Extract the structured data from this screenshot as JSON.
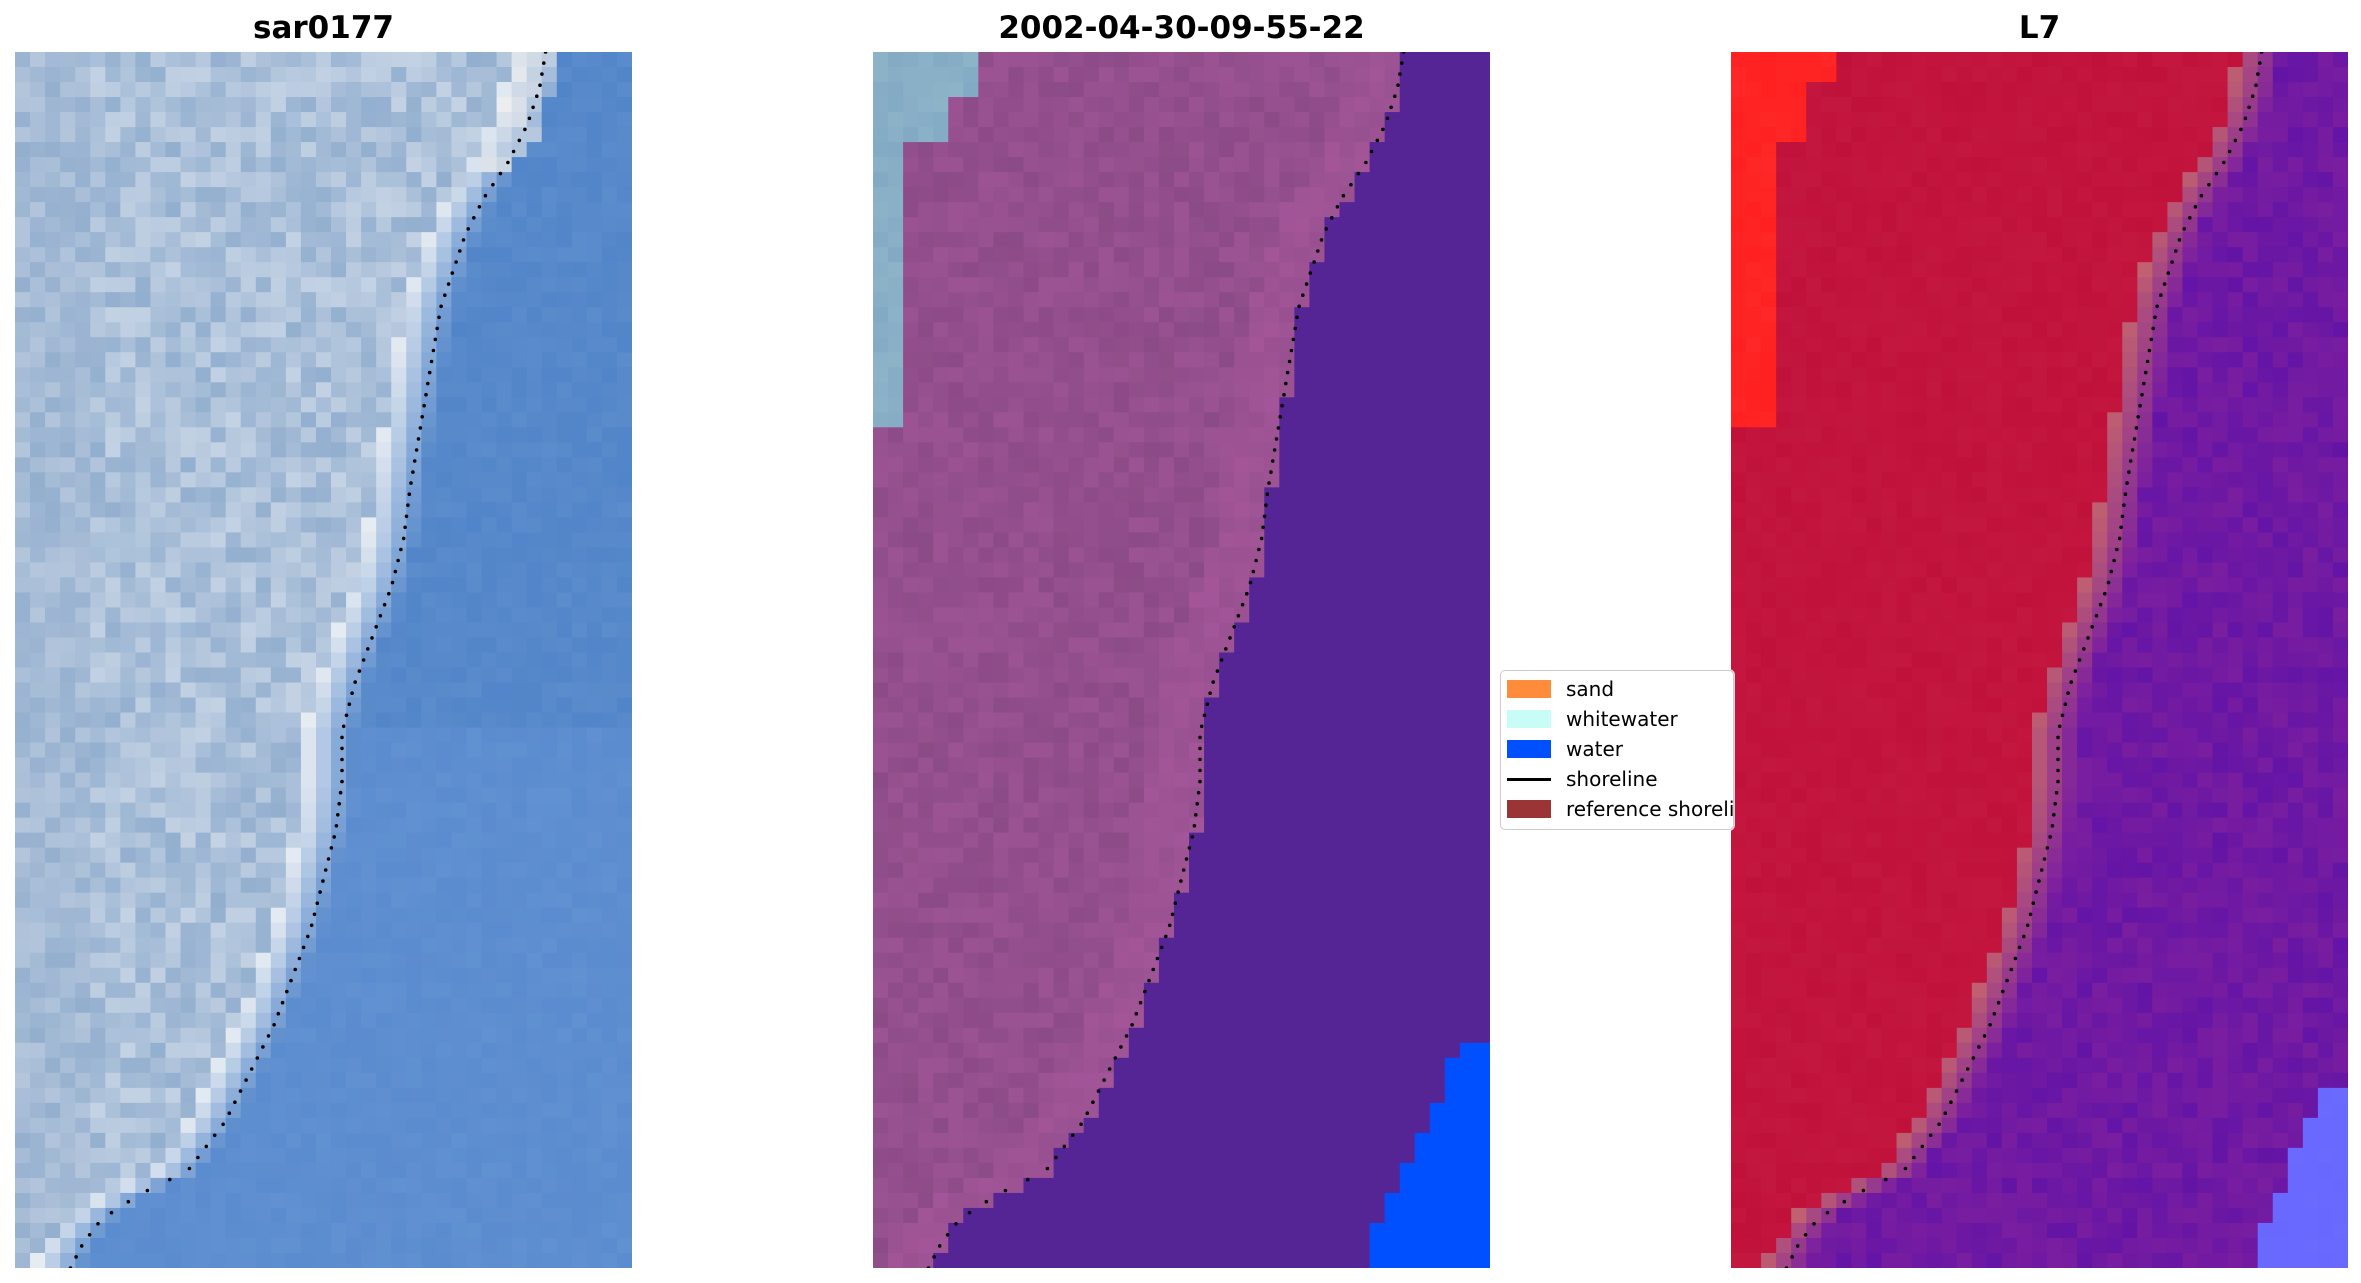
{
  "panels": [
    {
      "title": "sar0177",
      "kind": "true-color image",
      "colors": {
        "land_light": "#c9d6e6",
        "land_mid": "#93afcf",
        "whitewater": "#e6ecf2",
        "water": "#5b8ccc",
        "water_deep": "#4f83c8",
        "foam_bright": "#fff8ee"
      }
    },
    {
      "title": "2002-04-30-09-55-22",
      "kind": "classified image",
      "colors": {
        "land": "#8b4b87",
        "land_light": "#a4579a",
        "cloud_strip": "#8db3c9",
        "water": "#552596",
        "water_class": "#0050ff"
      }
    },
    {
      "title": "L7",
      "kind": "MNDWI image",
      "colors": {
        "land": "#c0113a",
        "land_bright": "#ff2020",
        "transition": "#c06070",
        "water": "#7a1ea0",
        "water_deep": "#5a10a8",
        "water_edge": "#6a6aff"
      }
    }
  ],
  "legend": {
    "items": [
      {
        "label": "sand",
        "color": "#ff8c3a",
        "kind": "patch"
      },
      {
        "label": "whitewater",
        "color": "#c8fcf6",
        "kind": "patch"
      },
      {
        "label": "water",
        "color": "#0050ff",
        "kind": "patch"
      },
      {
        "label": "shoreline",
        "color": "#000000",
        "kind": "line"
      },
      {
        "label": "reference shoreline",
        "color": "#9b3535",
        "kind": "patch"
      }
    ]
  },
  "shoreline": {
    "style": "dotted",
    "color": "#000000",
    "points": [
      [
        0.86,
        0.0
      ],
      [
        0.85,
        0.03
      ],
      [
        0.83,
        0.06
      ],
      [
        0.8,
        0.09
      ],
      [
        0.76,
        0.12
      ],
      [
        0.73,
        0.15
      ],
      [
        0.71,
        0.18
      ],
      [
        0.69,
        0.21
      ],
      [
        0.68,
        0.24
      ],
      [
        0.67,
        0.27
      ],
      [
        0.66,
        0.3
      ],
      [
        0.65,
        0.33
      ],
      [
        0.64,
        0.36
      ],
      [
        0.63,
        0.4
      ],
      [
        0.61,
        0.44
      ],
      [
        0.58,
        0.48
      ],
      [
        0.55,
        0.52
      ],
      [
        0.53,
        0.56
      ],
      [
        0.53,
        0.6
      ],
      [
        0.52,
        0.64
      ],
      [
        0.5,
        0.68
      ],
      [
        0.48,
        0.72
      ],
      [
        0.45,
        0.76
      ],
      [
        0.42,
        0.8
      ],
      [
        0.38,
        0.84
      ],
      [
        0.34,
        0.88
      ],
      [
        0.28,
        0.92
      ],
      [
        0.2,
        0.94
      ],
      [
        0.14,
        0.96
      ],
      [
        0.11,
        0.98
      ],
      [
        0.09,
        1.0
      ]
    ]
  }
}
